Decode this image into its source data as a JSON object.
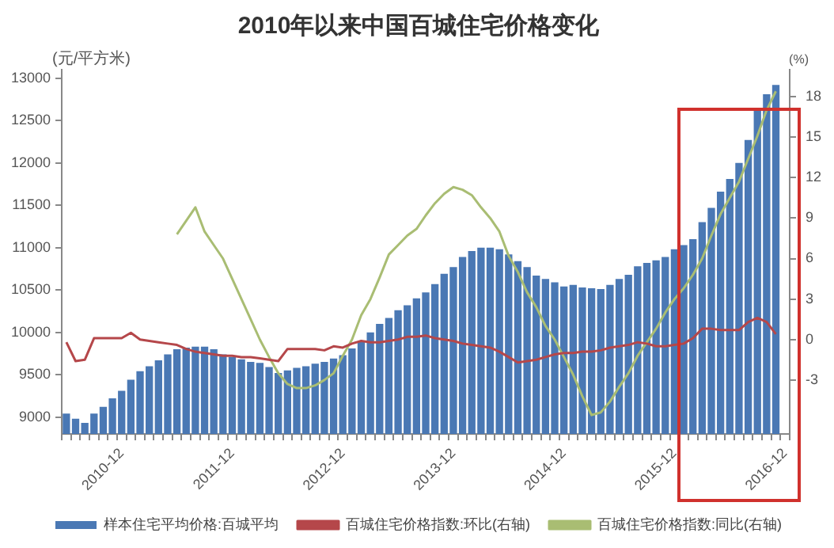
{
  "chart_data": {
    "type": "bar",
    "title": "2010年以来中国百城住宅价格变化",
    "ylabel": "(元/平方米)",
    "y2label": "(%)",
    "categories": [
      null,
      null,
      null,
      null,
      null,
      null,
      "2010-12",
      null,
      null,
      null,
      null,
      null,
      null,
      null,
      null,
      null,
      null,
      null,
      "2011-12",
      null,
      null,
      null,
      null,
      null,
      null,
      null,
      null,
      null,
      null,
      null,
      "2012-12",
      null,
      null,
      null,
      null,
      null,
      null,
      null,
      null,
      null,
      null,
      null,
      "2013-12",
      null,
      null,
      null,
      null,
      null,
      null,
      null,
      null,
      null,
      null,
      null,
      "2014-12",
      null,
      null,
      null,
      null,
      null,
      null,
      null,
      null,
      null,
      null,
      null,
      "2015-12",
      null,
      null,
      null,
      null,
      null,
      null,
      null,
      null,
      null,
      null,
      null,
      "2016-12"
    ],
    "series": [
      {
        "name": "样本住宅平均价格:百城平均",
        "color": "#4a78b4",
        "values": [
          9040,
          8980,
          8930,
          9040,
          9120,
          9220,
          9310,
          9440,
          9540,
          9600,
          9670,
          9740,
          9800,
          9820,
          9830,
          9830,
          9800,
          9740,
          9710,
          9680,
          9650,
          9640,
          9590,
          9520,
          9550,
          9580,
          9600,
          9630,
          9650,
          9690,
          9730,
          9810,
          9890,
          10000,
          10100,
          10170,
          10260,
          10320,
          10400,
          10470,
          10570,
          10690,
          10770,
          10890,
          10960,
          11000,
          11000,
          10980,
          10920,
          10840,
          10770,
          10670,
          10630,
          10590,
          10540,
          10560,
          10530,
          10520,
          10510,
          10560,
          10630,
          10680,
          10780,
          10820,
          10850,
          10890,
          10980,
          11030,
          11100,
          11300,
          11470,
          11660,
          11810,
          12000,
          12270,
          12620,
          12810,
          12920,
          null
        ]
      },
      {
        "name": "百城住宅价格指数:环比(右轴)",
        "type": "line",
        "axis": "y2",
        "color": "#b5474a",
        "values": [
          -0.2,
          -1.6,
          -1.5,
          0.1,
          0.1,
          0.1,
          0.1,
          0.5,
          0.0,
          -0.1,
          -0.2,
          -0.3,
          -0.4,
          -0.7,
          -0.9,
          -1.0,
          -1.1,
          -1.2,
          -1.2,
          -1.3,
          -1.3,
          -1.4,
          -1.5,
          -1.6,
          -0.7,
          -0.7,
          -0.7,
          -0.7,
          -0.8,
          -0.5,
          -0.6,
          -0.3,
          -0.1,
          -0.2,
          -0.2,
          -0.1,
          0.0,
          0.2,
          0.2,
          0.3,
          0.1,
          0.0,
          -0.1,
          -0.3,
          -0.4,
          -0.5,
          -0.6,
          -0.9,
          -1.3,
          -1.7,
          -1.6,
          -1.5,
          -1.3,
          -1.1,
          -1.0,
          -1.0,
          -0.9,
          -0.9,
          -0.8,
          -0.6,
          -0.5,
          -0.4,
          -0.2,
          -0.3,
          -0.5,
          -0.5,
          -0.4,
          -0.3,
          0.1,
          0.8,
          0.8,
          0.7,
          0.7,
          0.7,
          1.3,
          1.6,
          1.3,
          0.4,
          null
        ]
      },
      {
        "name": "百城住宅价格指数:同比(右轴)",
        "type": "line",
        "axis": "y2",
        "color": "#a9bd73",
        "values": [
          null,
          null,
          null,
          null,
          null,
          null,
          null,
          null,
          null,
          null,
          null,
          null,
          7.8,
          8.8,
          9.8,
          8.0,
          7.0,
          6.0,
          4.5,
          3.0,
          1.5,
          0.0,
          -1.3,
          -2.5,
          -3.3,
          -3.6,
          -3.6,
          -3.4,
          -3.0,
          -2.5,
          -1.2,
          0.0,
          1.8,
          3.0,
          4.6,
          6.3,
          7.0,
          7.7,
          8.2,
          9.2,
          10.1,
          10.8,
          11.3,
          11.1,
          10.7,
          9.8,
          9.0,
          8.0,
          6.2,
          5.0,
          3.5,
          2.4,
          1.0,
          0.0,
          -1.3,
          -2.6,
          -4.2,
          -5.6,
          -5.4,
          -4.6,
          -3.5,
          -2.5,
          -1.2,
          -0.2,
          0.8,
          2.0,
          3.0,
          3.8,
          4.8,
          6.0,
          7.7,
          9.3,
          10.5,
          11.7,
          13.4,
          15.1,
          17.0,
          18.4,
          null
        ]
      }
    ],
    "ylim": [
      8800,
      13100
    ],
    "yticks": [
      9000,
      9500,
      10000,
      10500,
      11000,
      11500,
      12000,
      12500,
      13000
    ],
    "y2lim": [
      -7,
      20
    ],
    "y2ticks": [
      -3,
      0,
      3,
      6,
      9,
      12,
      15,
      18
    ],
    "legend": "bottom",
    "grid": false
  }
}
